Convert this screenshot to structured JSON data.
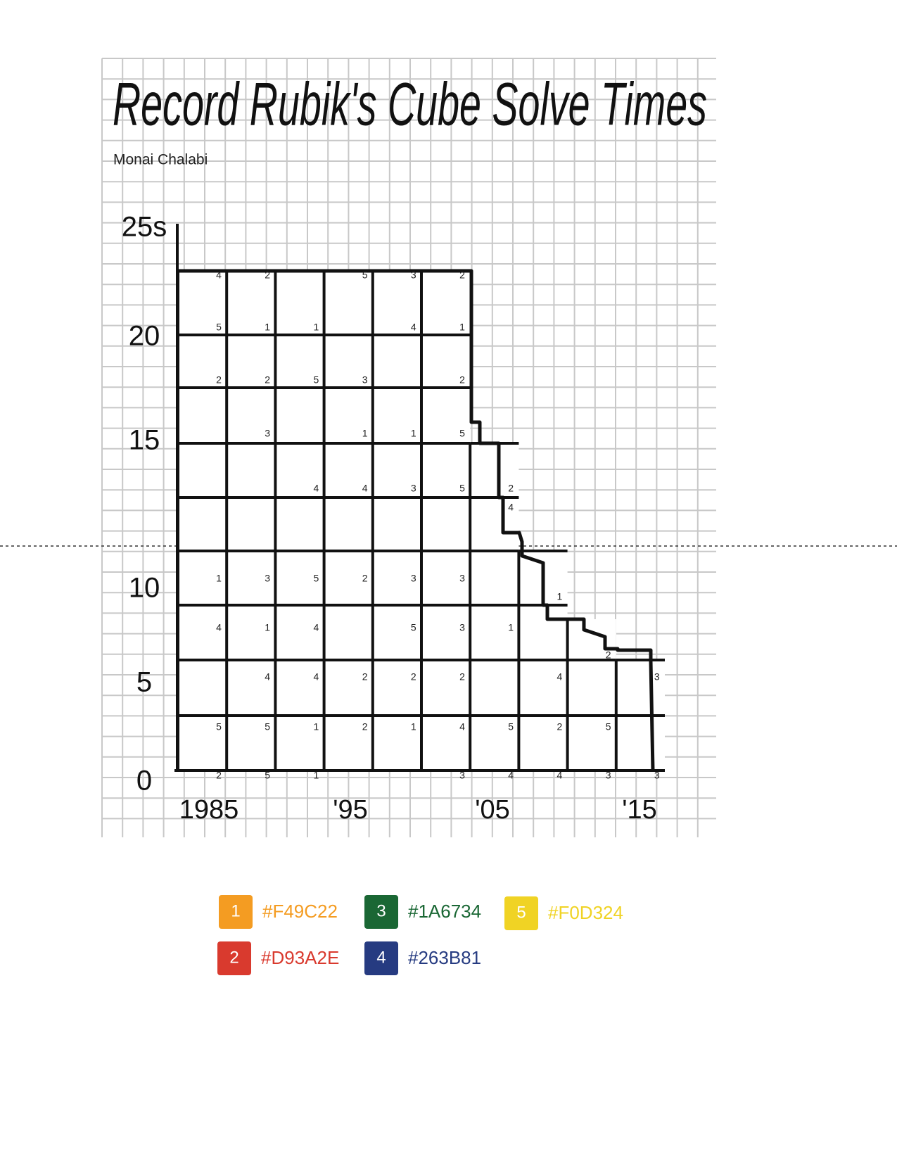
{
  "header": {
    "title": "Record Rubik's Cube Solve Times",
    "author": "Monai Chalabi"
  },
  "y_axis_labels": [
    "25s",
    "20",
    "15",
    "10",
    "5",
    "0"
  ],
  "x_axis_labels": [
    "1985",
    "'95",
    "'05",
    "'15"
  ],
  "cell_numbers": [
    [
      4,
      2,
      null,
      5,
      3,
      2,
      null,
      null,
      null,
      null
    ],
    [
      5,
      1,
      1,
      null,
      4,
      1,
      null,
      null,
      null,
      null
    ],
    [
      2,
      2,
      5,
      3,
      null,
      2,
      null,
      null,
      null,
      null
    ],
    [
      null,
      3,
      null,
      1,
      1,
      5,
      null,
      null,
      null,
      null
    ],
    [
      null,
      null,
      4,
      4,
      3,
      5,
      2,
      null,
      null,
      null
    ],
    [
      null,
      null,
      null,
      null,
      null,
      null,
      4,
      null,
      null,
      null
    ],
    [
      1,
      3,
      5,
      2,
      3,
      3,
      null,
      null,
      null,
      null
    ],
    [
      null,
      null,
      null,
      null,
      null,
      null,
      null,
      1,
      null,
      null
    ],
    [
      4,
      1,
      4,
      null,
      5,
      3,
      1,
      null,
      null,
      null
    ],
    [
      null,
      null,
      null,
      null,
      null,
      null,
      null,
      null,
      2,
      null
    ],
    [
      null,
      4,
      4,
      2,
      2,
      2,
      null,
      4,
      null,
      3
    ],
    [
      5,
      5,
      1,
      2,
      1,
      4,
      5,
      2,
      5,
      null
    ],
    [
      2,
      5,
      1,
      null,
      null,
      3,
      4,
      4,
      3,
      3
    ]
  ],
  "legend": [
    {
      "number": "1",
      "code": "#F49C22"
    },
    {
      "number": "2",
      "code": "#D93A2E"
    },
    {
      "number": "3",
      "code": "#1A6734"
    },
    {
      "number": "4",
      "code": "#263B81"
    },
    {
      "number": "5",
      "code": "#F0D324"
    }
  ]
}
